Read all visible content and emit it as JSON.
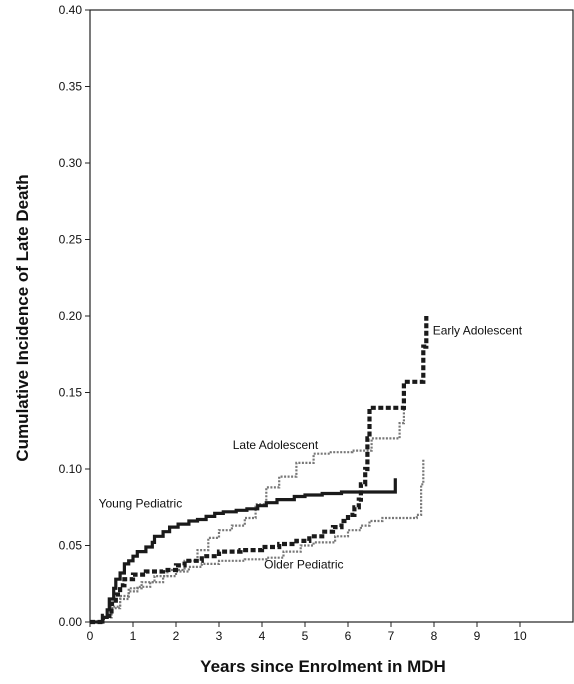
{
  "chart_data": {
    "type": "line",
    "subtype": "step",
    "title": "",
    "xlabel": "Years since Enrolment in MDH",
    "ylabel": "Cumulative Incidence of Late Death",
    "xlim": [
      0,
      11.2
    ],
    "ylim": [
      0,
      0.4
    ],
    "x_ticks": [
      0,
      1,
      2,
      3,
      4,
      5,
      6,
      7,
      8,
      9,
      10
    ],
    "x_tick_labels": [
      "0",
      "1",
      "2",
      "3",
      "4",
      "5",
      "6",
      "7",
      "8",
      "9",
      "10"
    ],
    "y_ticks": [
      0,
      0.05,
      0.1,
      0.15,
      0.2,
      0.25,
      0.3,
      0.35,
      0.4
    ],
    "y_tick_labels": [
      "0.00",
      "0.05",
      "0.10",
      "0.15",
      "0.20",
      "0.25",
      "0.30",
      "0.35",
      "0.40"
    ],
    "grid": false,
    "series": [
      {
        "name": "Young Pediatric",
        "style": "solid-thick",
        "color": "#1a1a1a",
        "points": [
          [
            0,
            0
          ],
          [
            0.3,
            0
          ],
          [
            0.3,
            0.003
          ],
          [
            0.4,
            0.008
          ],
          [
            0.45,
            0.015
          ],
          [
            0.55,
            0.022
          ],
          [
            0.6,
            0.028
          ],
          [
            0.7,
            0.032
          ],
          [
            0.8,
            0.038
          ],
          [
            0.9,
            0.04
          ],
          [
            1.0,
            0.043
          ],
          [
            1.1,
            0.046
          ],
          [
            1.3,
            0.049
          ],
          [
            1.45,
            0.052
          ],
          [
            1.5,
            0.056
          ],
          [
            1.7,
            0.059
          ],
          [
            1.85,
            0.062
          ],
          [
            2.05,
            0.064
          ],
          [
            2.3,
            0.066
          ],
          [
            2.5,
            0.067
          ],
          [
            2.7,
            0.069
          ],
          [
            2.9,
            0.071
          ],
          [
            3.1,
            0.072
          ],
          [
            3.4,
            0.073
          ],
          [
            3.65,
            0.074
          ],
          [
            3.9,
            0.076
          ],
          [
            4.1,
            0.078
          ],
          [
            4.35,
            0.08
          ],
          [
            4.75,
            0.082
          ],
          [
            5.0,
            0.083
          ],
          [
            5.4,
            0.084
          ],
          [
            5.85,
            0.085
          ],
          [
            7.1,
            0.085
          ],
          [
            7.1,
            0.094
          ]
        ],
        "label": "Young Pediatric"
      },
      {
        "name": "Early Adolescent",
        "style": "dashed-thick",
        "color": "#1a1a1a",
        "points": [
          [
            0,
            0
          ],
          [
            0.3,
            0
          ],
          [
            0.3,
            0.004
          ],
          [
            0.5,
            0.012
          ],
          [
            0.6,
            0.018
          ],
          [
            0.7,
            0.024
          ],
          [
            0.8,
            0.028
          ],
          [
            1.0,
            0.031
          ],
          [
            1.3,
            0.033
          ],
          [
            1.7,
            0.034
          ],
          [
            2.0,
            0.037
          ],
          [
            2.2,
            0.04
          ],
          [
            2.6,
            0.043
          ],
          [
            3.0,
            0.046
          ],
          [
            3.5,
            0.047
          ],
          [
            4.0,
            0.049
          ],
          [
            4.4,
            0.051
          ],
          [
            4.8,
            0.053
          ],
          [
            5.1,
            0.056
          ],
          [
            5.4,
            0.059
          ],
          [
            5.65,
            0.062
          ],
          [
            5.85,
            0.066
          ],
          [
            6.0,
            0.07
          ],
          [
            6.15,
            0.075
          ],
          [
            6.25,
            0.08
          ],
          [
            6.3,
            0.09
          ],
          [
            6.4,
            0.1
          ],
          [
            6.45,
            0.12
          ],
          [
            6.5,
            0.14
          ],
          [
            7.3,
            0.14
          ],
          [
            7.3,
            0.157
          ],
          [
            7.75,
            0.157
          ],
          [
            7.75,
            0.18
          ],
          [
            7.82,
            0.2
          ]
        ],
        "label": "Early Adolescent"
      },
      {
        "name": "Late Adolescent",
        "style": "dotted-gray",
        "color": "#777777",
        "points": [
          [
            0,
            0
          ],
          [
            0.3,
            0
          ],
          [
            0.3,
            0.003
          ],
          [
            0.5,
            0.01
          ],
          [
            0.7,
            0.017
          ],
          [
            0.9,
            0.022
          ],
          [
            1.2,
            0.026
          ],
          [
            1.5,
            0.03
          ],
          [
            1.8,
            0.034
          ],
          [
            2.2,
            0.04
          ],
          [
            2.5,
            0.047
          ],
          [
            2.75,
            0.055
          ],
          [
            3.0,
            0.06
          ],
          [
            3.3,
            0.063
          ],
          [
            3.6,
            0.068
          ],
          [
            3.85,
            0.077
          ],
          [
            4.1,
            0.088
          ],
          [
            4.4,
            0.095
          ],
          [
            4.8,
            0.104
          ],
          [
            5.2,
            0.11
          ],
          [
            5.6,
            0.111
          ],
          [
            6.1,
            0.112
          ],
          [
            6.45,
            0.112
          ],
          [
            6.55,
            0.12
          ],
          [
            7.2,
            0.12
          ],
          [
            7.2,
            0.13
          ],
          [
            7.3,
            0.14
          ]
        ],
        "label": "Late Adolescent"
      },
      {
        "name": "Older Pediatric",
        "style": "dotted-gray",
        "color": "#777777",
        "points": [
          [
            0,
            0
          ],
          [
            0.3,
            0
          ],
          [
            0.3,
            0.003
          ],
          [
            0.5,
            0.009
          ],
          [
            0.7,
            0.015
          ],
          [
            0.9,
            0.02
          ],
          [
            1.1,
            0.023
          ],
          [
            1.4,
            0.026
          ],
          [
            1.7,
            0.03
          ],
          [
            2.0,
            0.033
          ],
          [
            2.3,
            0.036
          ],
          [
            2.6,
            0.038
          ],
          [
            3.0,
            0.04
          ],
          [
            3.6,
            0.041
          ],
          [
            4.1,
            0.042
          ],
          [
            4.5,
            0.046
          ],
          [
            4.9,
            0.05
          ],
          [
            5.2,
            0.052
          ],
          [
            5.7,
            0.056
          ],
          [
            6.0,
            0.06
          ],
          [
            6.3,
            0.063
          ],
          [
            6.5,
            0.066
          ],
          [
            6.8,
            0.068
          ],
          [
            7.6,
            0.07
          ],
          [
            7.7,
            0.09
          ],
          [
            7.75,
            0.106
          ]
        ],
        "label": "Older Pediatric"
      }
    ],
    "annotations": [
      {
        "text": "Young Pediatric",
        "x": 0.2,
        "y": 0.075,
        "anchor": "start"
      },
      {
        "text": "Early Adolescent",
        "x": 7.97,
        "y": 0.188,
        "anchor": "start"
      },
      {
        "text": "Late Adolescent",
        "x": 3.32,
        "y": 0.113,
        "anchor": "start"
      },
      {
        "text": "Older Pediatric",
        "x": 4.05,
        "y": 0.035,
        "anchor": "start"
      }
    ]
  }
}
